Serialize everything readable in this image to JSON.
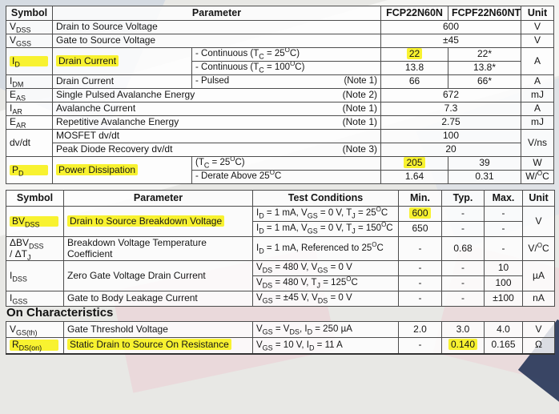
{
  "colors": {
    "highlight": "#f8f230",
    "table_border": "#4d4d4d",
    "page_background": "#e8e8e5"
  },
  "table1": {
    "headers": {
      "symbol": "Symbol",
      "parameter": "Parameter",
      "device1": "FCP22N60N",
      "device2": "FCPF22N60NT",
      "unit": "Unit"
    },
    "rows": {
      "vdss": {
        "sym": "V_{DSS}",
        "param": "Drain to Source Voltage",
        "value": "600",
        "unit": "V"
      },
      "vgss": {
        "sym": "V_{GSS}",
        "param": "Gate to Source Voltage",
        "value": "±45",
        "unit": "V"
      },
      "id1": {
        "sym": "I_{D}",
        "param": "Drain Current",
        "cond": "- Continuous (T_{C} = 25^{O}C)",
        "v1": "22",
        "v2": "22*",
        "unit": "A"
      },
      "id2": {
        "cond": "- Continuous (T_{C} = 100^{O}C)",
        "v1": "13.8",
        "v2": "13.8*"
      },
      "idm": {
        "sym": "I_{DM}",
        "param": "Drain Current",
        "cond": "- Pulsed",
        "note": "(Note 1)",
        "v1": "66",
        "v2": "66*",
        "unit": "A"
      },
      "eas": {
        "sym": "E_{AS}",
        "param": "Single Pulsed Avalanche Energy",
        "note": "(Note 2)",
        "value": "672",
        "unit": "mJ"
      },
      "iar": {
        "sym": "I_{AR}",
        "param": "Avalanche Current",
        "note": "(Note 1)",
        "value": "7.3",
        "unit": "A"
      },
      "ear": {
        "sym": "E_{AR}",
        "param": "Repetitive Avalanche Energy",
        "note": "(Note 1)",
        "value": "2.75",
        "unit": "mJ"
      },
      "dvdt1": {
        "sym": "dv/dt",
        "param": "MOSFET dv/dt",
        "value": "100",
        "unit": "V/ns"
      },
      "dvdt2": {
        "param": "Peak Diode Recovery dv/dt",
        "note": "(Note 3)",
        "value": "20"
      },
      "pd1": {
        "sym": "P_{D}",
        "param": "Power Dissipation",
        "cond": "(T_{C} = 25^{O}C)",
        "v1": "205",
        "v2": "39",
        "unit": "W"
      },
      "pd2": {
        "cond": "- Derate Above 25^{O}C",
        "v1": "1.64",
        "v2": "0.31",
        "unit": "W/^{O}C"
      }
    }
  },
  "table2": {
    "headers": {
      "symbol": "Symbol",
      "parameter": "Parameter",
      "conditions": "Test Conditions",
      "min": "Min.",
      "typ": "Typ.",
      "max": "Max.",
      "unit": "Unit"
    },
    "rows": {
      "bvdss1": {
        "sym": "BV_{DSS}",
        "param": "Drain to Source Breakdown Voltage",
        "cond": "I_{D} = 1 mA, V_{GS} = 0 V, T_{J} = 25^{O}C",
        "min": "600",
        "typ": "-",
        "max": "-",
        "unit": "V"
      },
      "bvdss2": {
        "cond": "I_{D} = 1 mA, V_{GS} = 0 V, T_{J} = 150^{O}C",
        "min": "650",
        "typ": "-",
        "max": "-"
      },
      "dbv": {
        "sym": "ΔBV_{DSS}\n/ ΔT_{J}",
        "param": "Breakdown Voltage Temperature Coefficient",
        "cond": "I_{D} = 1 mA, Referenced to 25^{O}C",
        "min": "-",
        "typ": "0.68",
        "max": "-",
        "unit": "V/^{O}C"
      },
      "idss1": {
        "sym": "I_{DSS}",
        "param": "Zero Gate Voltage Drain Current",
        "cond": "V_{DS} = 480 V, V_{GS} = 0 V",
        "min": "-",
        "typ": "-",
        "max": "10",
        "unit": "µA"
      },
      "idss2": {
        "cond": "V_{DS} = 480 V, T_{J} = 125^{O}C",
        "min": "-",
        "typ": "-",
        "max": "100"
      },
      "igss": {
        "sym": "I_{GSS}",
        "param": "Gate to Body Leakage Current",
        "cond": "V_{GS} = ±45 V, V_{DS} = 0 V",
        "min": "-",
        "typ": "-",
        "max": "±100",
        "unit": "nA"
      }
    }
  },
  "section": {
    "title": "On Characteristics"
  },
  "table3": {
    "rows": {
      "vgsth": {
        "sym": "V_{GS(th)}",
        "param": "Gate Threshold Voltage",
        "cond": "V_{GS} = V_{DS}, I_{D} = 250 µA",
        "min": "2.0",
        "typ": "3.0",
        "max": "4.0",
        "unit": "V"
      },
      "rdson": {
        "sym": "R_{DS(on)}",
        "param": "Static Drain to Source On Resistance",
        "cond": "V_{GS} = 10 V, I_{D} = 11 A",
        "min": "-",
        "typ": "0.140",
        "max": "0.165",
        "unit": "Ω"
      }
    }
  }
}
